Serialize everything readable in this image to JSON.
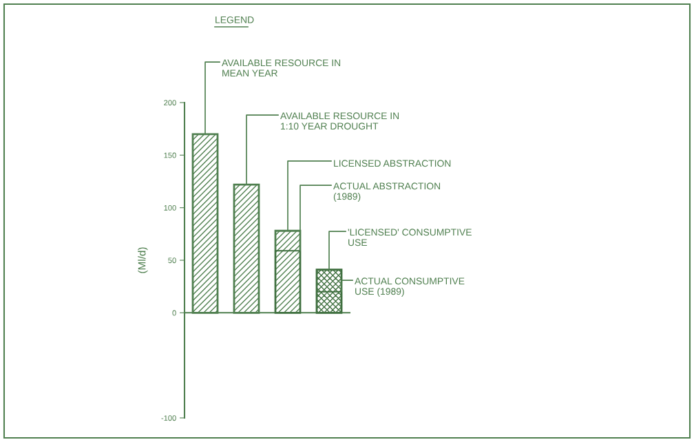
{
  "chart_data": {
    "type": "bar",
    "title": "LEGEND",
    "ylabel": "(Ml/d)",
    "categories": [
      null,
      null,
      null,
      null
    ],
    "series": [
      {
        "color": "#4f7f4f",
        "values": [
          170,
          122,
          78,
          null
        ]
      },
      {
        "color": "#3f6f3f",
        "values": [
          null,
          null,
          null,
          41
        ]
      },
      {
        "color": "#3f6f3f",
        "values": [
          null,
          null,
          59,
          20
        ]
      }
    ],
    "ref_lines": [
      {
        "axis": "y",
        "value": 0,
        "color": "#4f7f4f"
      }
    ],
    "ylim": [
      -100,
      200
    ],
    "yticks": [
      -100,
      0,
      50,
      100,
      150,
      200
    ],
    "annotations": [
      "AVAILABLE RESOURCE IN\nMEAN YEAR",
      "AVAILABLE RESOURCE IN\n1:10 YEAR DROUGHT",
      "LICENSED ABSTRACTION",
      "ACTUAL ABSTRACTION\n(1989)",
      "'LICENSED' CONSUMPTIVE\nUSE",
      "ACTUAL CONSUMPTIVE\nUSE (1989)"
    ],
    "grid": false,
    "legend": false
  }
}
